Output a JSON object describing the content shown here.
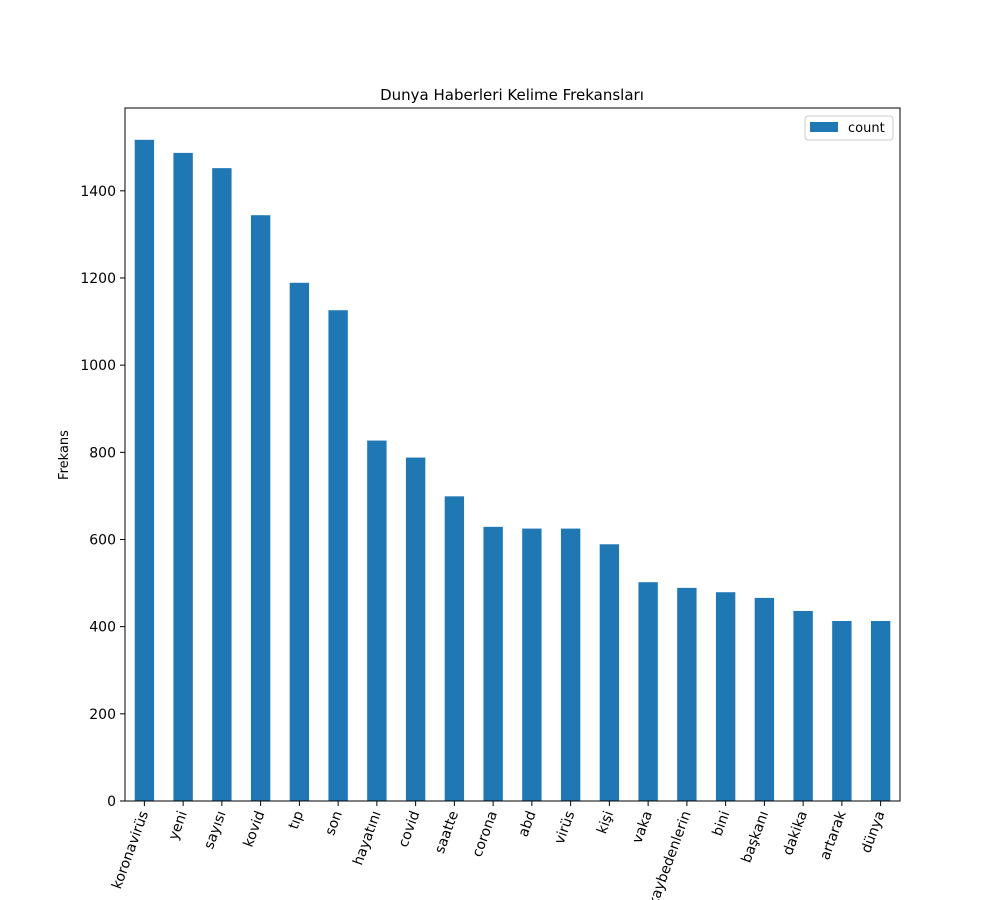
{
  "chart_data": {
    "type": "bar",
    "title": "Dunya Haberleri Kelime Frekansları",
    "xlabel": "",
    "ylabel": "Frekans",
    "ylim": [
      0,
      1590
    ],
    "yticks": [
      0,
      200,
      400,
      600,
      800,
      1000,
      1200,
      1400
    ],
    "yticklabels": [
      "0",
      "200",
      "400",
      "600",
      "800",
      "1000",
      "1200",
      "1400"
    ],
    "grid": false,
    "legend_position": "top-right",
    "bar_color": "#1f77b4",
    "categories": [
      "koronavirüs",
      "yeni",
      "sayısı",
      "kovid",
      "tıp",
      "son",
      "hayatını",
      "covid",
      "saatte",
      "corona",
      "abd",
      "virüs",
      "kişi",
      "vaka",
      "kaybedenlerin",
      "bini",
      "başkanı",
      "dakika",
      "artarak",
      "dünya"
    ],
    "series": [
      {
        "name": "count",
        "values": [
          1517,
          1487,
          1452,
          1344,
          1189,
          1126,
          827,
          788,
          699,
          629,
          625,
          625,
          589,
          502,
          489,
          479,
          466,
          436,
          413,
          413
        ]
      }
    ]
  }
}
